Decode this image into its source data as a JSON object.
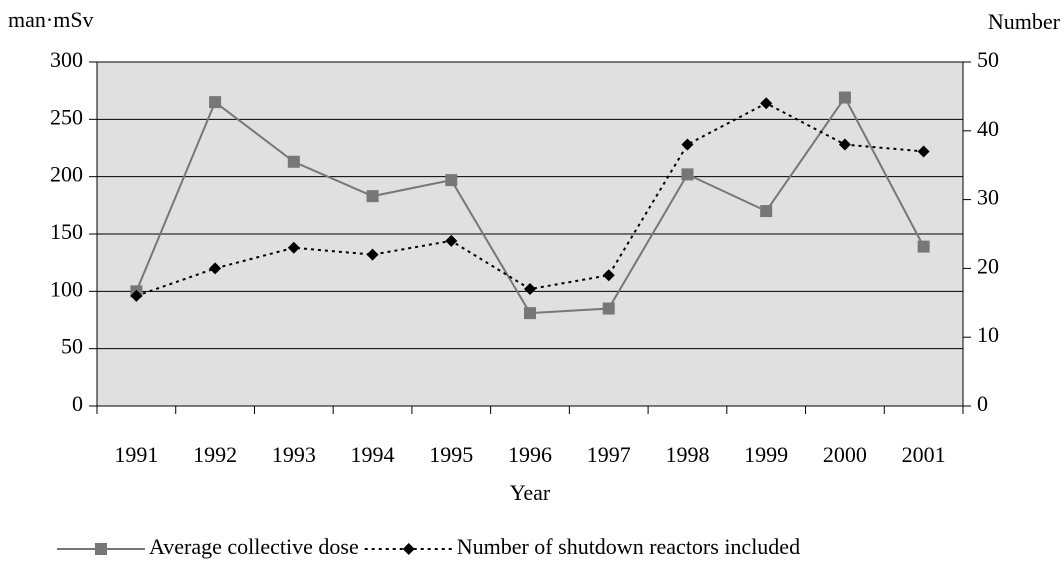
{
  "chart_data": {
    "type": "line",
    "y_label": "man·mSv",
    "y2_label": "Number",
    "x_label": "Year",
    "categories": [
      "1991",
      "1992",
      "1993",
      "1994",
      "1995",
      "1996",
      "1997",
      "1998",
      "1999",
      "2000",
      "2001"
    ],
    "series": [
      {
        "name": "Average collective dose",
        "color": "#777777",
        "dash": "solid",
        "values": [
          100,
          265,
          213,
          183,
          197,
          81,
          85,
          202,
          170,
          269,
          139
        ]
      },
      {
        "name": "Number of shutdown reactors included",
        "color": "#000000",
        "dash": "dotted",
        "axis": "y2",
        "values": [
          16,
          20,
          23,
          22,
          24,
          17,
          19,
          38,
          44,
          38,
          37
        ]
      }
    ],
    "ylim": [
      0,
      300
    ],
    "yticks": [
      0,
      50,
      100,
      150,
      200,
      250,
      300
    ],
    "y2lim": [
      0,
      50
    ],
    "y2ticks": [
      0,
      10,
      20,
      30,
      40,
      50
    ],
    "grid": true,
    "legend": "bottom"
  }
}
